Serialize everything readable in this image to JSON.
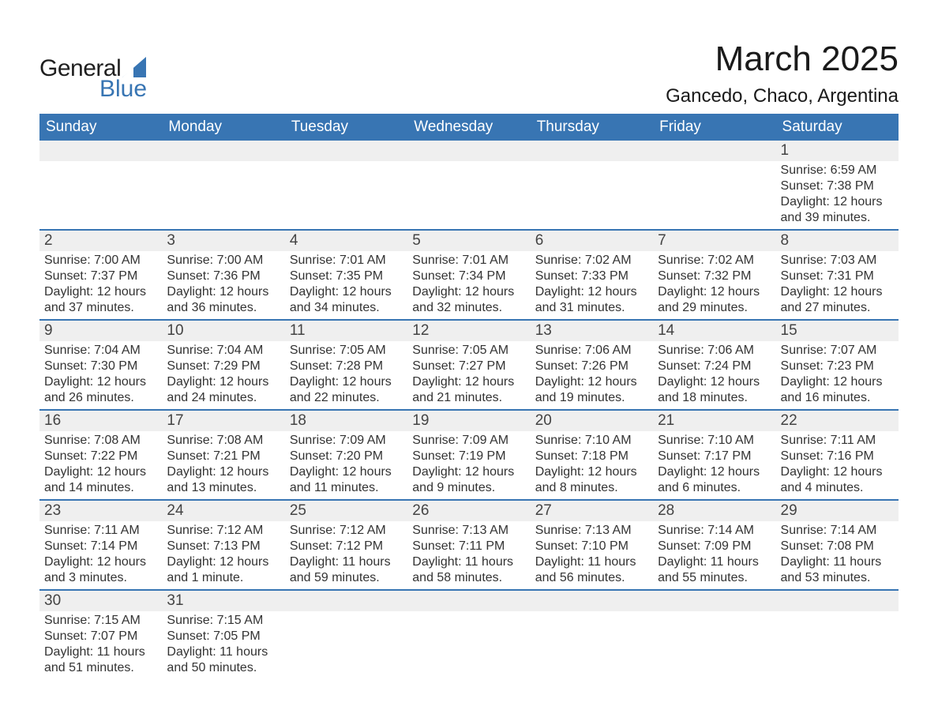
{
  "logo": {
    "text_general": "General",
    "text_blue": "Blue",
    "sail_color": "#3875b3"
  },
  "title": {
    "month": "March 2025",
    "location": "Gancedo, Chaco, Argentina"
  },
  "style": {
    "header_bg": "#3875b3",
    "header_fg": "#ffffff",
    "daynum_bg": "#efefef",
    "row_border": "#3875b3",
    "body_bg": "#ffffff",
    "text_color": "#333333",
    "title_fontsize": 44,
    "location_fontsize": 24,
    "dayhdr_fontsize": 19,
    "daynum_fontsize": 19,
    "cell_fontsize": 16
  },
  "day_headers": [
    "Sunday",
    "Monday",
    "Tuesday",
    "Wednesday",
    "Thursday",
    "Friday",
    "Saturday"
  ],
  "weeks": [
    [
      {
        "n": "",
        "sunrise": "",
        "sunset": "",
        "daylight": ""
      },
      {
        "n": "",
        "sunrise": "",
        "sunset": "",
        "daylight": ""
      },
      {
        "n": "",
        "sunrise": "",
        "sunset": "",
        "daylight": ""
      },
      {
        "n": "",
        "sunrise": "",
        "sunset": "",
        "daylight": ""
      },
      {
        "n": "",
        "sunrise": "",
        "sunset": "",
        "daylight": ""
      },
      {
        "n": "",
        "sunrise": "",
        "sunset": "",
        "daylight": ""
      },
      {
        "n": "1",
        "sunrise": "Sunrise: 6:59 AM",
        "sunset": "Sunset: 7:38 PM",
        "daylight": "Daylight: 12 hours and 39 minutes."
      }
    ],
    [
      {
        "n": "2",
        "sunrise": "Sunrise: 7:00 AM",
        "sunset": "Sunset: 7:37 PM",
        "daylight": "Daylight: 12 hours and 37 minutes."
      },
      {
        "n": "3",
        "sunrise": "Sunrise: 7:00 AM",
        "sunset": "Sunset: 7:36 PM",
        "daylight": "Daylight: 12 hours and 36 minutes."
      },
      {
        "n": "4",
        "sunrise": "Sunrise: 7:01 AM",
        "sunset": "Sunset: 7:35 PM",
        "daylight": "Daylight: 12 hours and 34 minutes."
      },
      {
        "n": "5",
        "sunrise": "Sunrise: 7:01 AM",
        "sunset": "Sunset: 7:34 PM",
        "daylight": "Daylight: 12 hours and 32 minutes."
      },
      {
        "n": "6",
        "sunrise": "Sunrise: 7:02 AM",
        "sunset": "Sunset: 7:33 PM",
        "daylight": "Daylight: 12 hours and 31 minutes."
      },
      {
        "n": "7",
        "sunrise": "Sunrise: 7:02 AM",
        "sunset": "Sunset: 7:32 PM",
        "daylight": "Daylight: 12 hours and 29 minutes."
      },
      {
        "n": "8",
        "sunrise": "Sunrise: 7:03 AM",
        "sunset": "Sunset: 7:31 PM",
        "daylight": "Daylight: 12 hours and 27 minutes."
      }
    ],
    [
      {
        "n": "9",
        "sunrise": "Sunrise: 7:04 AM",
        "sunset": "Sunset: 7:30 PM",
        "daylight": "Daylight: 12 hours and 26 minutes."
      },
      {
        "n": "10",
        "sunrise": "Sunrise: 7:04 AM",
        "sunset": "Sunset: 7:29 PM",
        "daylight": "Daylight: 12 hours and 24 minutes."
      },
      {
        "n": "11",
        "sunrise": "Sunrise: 7:05 AM",
        "sunset": "Sunset: 7:28 PM",
        "daylight": "Daylight: 12 hours and 22 minutes."
      },
      {
        "n": "12",
        "sunrise": "Sunrise: 7:05 AM",
        "sunset": "Sunset: 7:27 PM",
        "daylight": "Daylight: 12 hours and 21 minutes."
      },
      {
        "n": "13",
        "sunrise": "Sunrise: 7:06 AM",
        "sunset": "Sunset: 7:26 PM",
        "daylight": "Daylight: 12 hours and 19 minutes."
      },
      {
        "n": "14",
        "sunrise": "Sunrise: 7:06 AM",
        "sunset": "Sunset: 7:24 PM",
        "daylight": "Daylight: 12 hours and 18 minutes."
      },
      {
        "n": "15",
        "sunrise": "Sunrise: 7:07 AM",
        "sunset": "Sunset: 7:23 PM",
        "daylight": "Daylight: 12 hours and 16 minutes."
      }
    ],
    [
      {
        "n": "16",
        "sunrise": "Sunrise: 7:08 AM",
        "sunset": "Sunset: 7:22 PM",
        "daylight": "Daylight: 12 hours and 14 minutes."
      },
      {
        "n": "17",
        "sunrise": "Sunrise: 7:08 AM",
        "sunset": "Sunset: 7:21 PM",
        "daylight": "Daylight: 12 hours and 13 minutes."
      },
      {
        "n": "18",
        "sunrise": "Sunrise: 7:09 AM",
        "sunset": "Sunset: 7:20 PM",
        "daylight": "Daylight: 12 hours and 11 minutes."
      },
      {
        "n": "19",
        "sunrise": "Sunrise: 7:09 AM",
        "sunset": "Sunset: 7:19 PM",
        "daylight": "Daylight: 12 hours and 9 minutes."
      },
      {
        "n": "20",
        "sunrise": "Sunrise: 7:10 AM",
        "sunset": "Sunset: 7:18 PM",
        "daylight": "Daylight: 12 hours and 8 minutes."
      },
      {
        "n": "21",
        "sunrise": "Sunrise: 7:10 AM",
        "sunset": "Sunset: 7:17 PM",
        "daylight": "Daylight: 12 hours and 6 minutes."
      },
      {
        "n": "22",
        "sunrise": "Sunrise: 7:11 AM",
        "sunset": "Sunset: 7:16 PM",
        "daylight": "Daylight: 12 hours and 4 minutes."
      }
    ],
    [
      {
        "n": "23",
        "sunrise": "Sunrise: 7:11 AM",
        "sunset": "Sunset: 7:14 PM",
        "daylight": "Daylight: 12 hours and 3 minutes."
      },
      {
        "n": "24",
        "sunrise": "Sunrise: 7:12 AM",
        "sunset": "Sunset: 7:13 PM",
        "daylight": "Daylight: 12 hours and 1 minute."
      },
      {
        "n": "25",
        "sunrise": "Sunrise: 7:12 AM",
        "sunset": "Sunset: 7:12 PM",
        "daylight": "Daylight: 11 hours and 59 minutes."
      },
      {
        "n": "26",
        "sunrise": "Sunrise: 7:13 AM",
        "sunset": "Sunset: 7:11 PM",
        "daylight": "Daylight: 11 hours and 58 minutes."
      },
      {
        "n": "27",
        "sunrise": "Sunrise: 7:13 AM",
        "sunset": "Sunset: 7:10 PM",
        "daylight": "Daylight: 11 hours and 56 minutes."
      },
      {
        "n": "28",
        "sunrise": "Sunrise: 7:14 AM",
        "sunset": "Sunset: 7:09 PM",
        "daylight": "Daylight: 11 hours and 55 minutes."
      },
      {
        "n": "29",
        "sunrise": "Sunrise: 7:14 AM",
        "sunset": "Sunset: 7:08 PM",
        "daylight": "Daylight: 11 hours and 53 minutes."
      }
    ],
    [
      {
        "n": "30",
        "sunrise": "Sunrise: 7:15 AM",
        "sunset": "Sunset: 7:07 PM",
        "daylight": "Daylight: 11 hours and 51 minutes."
      },
      {
        "n": "31",
        "sunrise": "Sunrise: 7:15 AM",
        "sunset": "Sunset: 7:05 PM",
        "daylight": "Daylight: 11 hours and 50 minutes."
      },
      {
        "n": "",
        "sunrise": "",
        "sunset": "",
        "daylight": ""
      },
      {
        "n": "",
        "sunrise": "",
        "sunset": "",
        "daylight": ""
      },
      {
        "n": "",
        "sunrise": "",
        "sunset": "",
        "daylight": ""
      },
      {
        "n": "",
        "sunrise": "",
        "sunset": "",
        "daylight": ""
      },
      {
        "n": "",
        "sunrise": "",
        "sunset": "",
        "daylight": ""
      }
    ]
  ]
}
